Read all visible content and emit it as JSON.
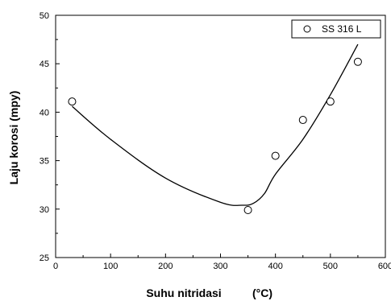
{
  "chart_data": {
    "type": "scatter",
    "title": "",
    "xlabel": "Suhu nitridasi",
    "xlabel_unit": "(°C)",
    "ylabel": "Laju korosi (mpy)",
    "xlim": [
      0,
      600
    ],
    "ylim": [
      25,
      50
    ],
    "xticks": [
      0,
      100,
      200,
      300,
      400,
      500,
      600
    ],
    "yticks": [
      25,
      30,
      35,
      40,
      45,
      50
    ],
    "grid": false,
    "legend": {
      "position": "top-right",
      "entries": [
        "SS 316 L"
      ]
    },
    "series": [
      {
        "name": "SS 316 L",
        "marker": "open-circle",
        "x": [
          30,
          350,
          400,
          450,
          500,
          550
        ],
        "y": [
          41.1,
          29.9,
          35.5,
          39.2,
          41.1,
          45.2
        ]
      }
    ],
    "fit_curve": {
      "x": [
        30,
        100,
        200,
        300,
        340,
        360,
        380,
        400,
        450,
        500,
        550
      ],
      "y": [
        40.6,
        37.2,
        33.2,
        30.7,
        30.4,
        30.6,
        31.6,
        33.6,
        37.2,
        41.8,
        47.0
      ]
    },
    "colors": {
      "ink": "#000000",
      "background": "#ffffff"
    }
  }
}
